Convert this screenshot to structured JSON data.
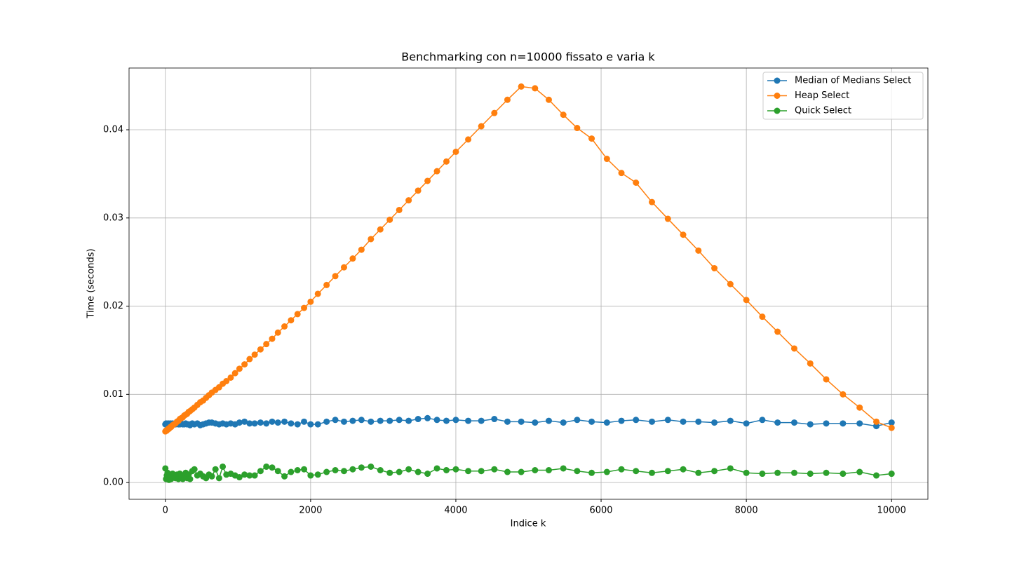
{
  "chart_data": {
    "type": "line",
    "title": "Benchmarking con n=10000 fissato e varia k",
    "x_label": "Indice k",
    "y_label": "Time (seconds)",
    "x": [
      0,
      10,
      20,
      30,
      40,
      50,
      60,
      70,
      80,
      100,
      120,
      140,
      160,
      180,
      200,
      220,
      240,
      260,
      280,
      300,
      320,
      340,
      370,
      400,
      440,
      480,
      520,
      560,
      600,
      640,
      690,
      740,
      790,
      840,
      900,
      960,
      1020,
      1090,
      1160,
      1230,
      1310,
      1390,
      1470,
      1550,
      1640,
      1730,
      1820,
      1910,
      2000,
      2100,
      2220,
      2340,
      2460,
      2580,
      2700,
      2830,
      2960,
      3090,
      3220,
      3350,
      3480,
      3610,
      3740,
      3870,
      4000,
      4170,
      4350,
      4530,
      4710,
      4900,
      5090,
      5280,
      5480,
      5670,
      5870,
      6080,
      6280,
      6480,
      6700,
      6920,
      7130,
      7340,
      7560,
      7780,
      8000,
      8220,
      8430,
      8660,
      8880,
      9100,
      9330,
      9560,
      9790,
      10000
    ],
    "series": [
      {
        "name": "Median of Medians Select",
        "color": "#1f77b4",
        "values": [
          0.0066,
          0.0067,
          0.0066,
          0.0065,
          0.0067,
          0.0066,
          0.0066,
          0.0067,
          0.0066,
          0.0067,
          0.0066,
          0.0066,
          0.0067,
          0.0066,
          0.0066,
          0.0067,
          0.0066,
          0.0066,
          0.0067,
          0.0066,
          0.0066,
          0.0065,
          0.0067,
          0.0066,
          0.0067,
          0.0065,
          0.0066,
          0.0067,
          0.0068,
          0.0068,
          0.0067,
          0.0066,
          0.0067,
          0.0066,
          0.0067,
          0.0066,
          0.0068,
          0.0069,
          0.0067,
          0.0067,
          0.0068,
          0.0067,
          0.0069,
          0.0068,
          0.0069,
          0.0067,
          0.0066,
          0.0069,
          0.0066,
          0.0066,
          0.0069,
          0.0071,
          0.0069,
          0.007,
          0.0071,
          0.0069,
          0.007,
          0.007,
          0.0071,
          0.007,
          0.0072,
          0.0073,
          0.0071,
          0.007,
          0.0071,
          0.007,
          0.007,
          0.0072,
          0.0069,
          0.0069,
          0.0068,
          0.007,
          0.0068,
          0.0071,
          0.0069,
          0.0068,
          0.007,
          0.0071,
          0.0069,
          0.0071,
          0.0069,
          0.0069,
          0.0068,
          0.007,
          0.0067,
          0.0071,
          0.0068,
          0.0068,
          0.0066,
          0.0067,
          0.0067,
          0.0067,
          0.0064,
          0.0068
        ]
      },
      {
        "name": "Heap Select",
        "color": "#ff7f0e",
        "values": [
          0.0058,
          0.0059,
          0.0059,
          0.006,
          0.0061,
          0.0061,
          0.0062,
          0.0063,
          0.0063,
          0.0065,
          0.0066,
          0.0067,
          0.0069,
          0.007,
          0.0072,
          0.0073,
          0.0074,
          0.0076,
          0.0077,
          0.0078,
          0.008,
          0.0081,
          0.0083,
          0.0085,
          0.0088,
          0.0091,
          0.0093,
          0.0096,
          0.0099,
          0.0102,
          0.0105,
          0.0108,
          0.0112,
          0.0115,
          0.0119,
          0.0124,
          0.0129,
          0.0134,
          0.014,
          0.0145,
          0.0151,
          0.0157,
          0.0163,
          0.017,
          0.0177,
          0.0184,
          0.0191,
          0.0198,
          0.0205,
          0.0214,
          0.0224,
          0.0234,
          0.0244,
          0.0254,
          0.0264,
          0.0276,
          0.0287,
          0.0298,
          0.0309,
          0.032,
          0.0331,
          0.0342,
          0.0353,
          0.0364,
          0.0375,
          0.0389,
          0.0404,
          0.0419,
          0.0434,
          0.0449,
          0.0447,
          0.0434,
          0.0417,
          0.0402,
          0.039,
          0.0367,
          0.0351,
          0.034,
          0.0318,
          0.0299,
          0.0281,
          0.0263,
          0.0243,
          0.0225,
          0.0207,
          0.0188,
          0.0171,
          0.0152,
          0.0135,
          0.0117,
          0.01,
          0.0085,
          0.0069,
          0.0062
        ]
      },
      {
        "name": "Quick Select",
        "color": "#2ca02c",
        "values": [
          0.0016,
          0.0004,
          0.0008,
          0.0011,
          0.0005,
          0.0003,
          0.0009,
          0.0006,
          0.0004,
          0.001,
          0.0007,
          0.0005,
          0.0009,
          0.0004,
          0.001,
          0.0006,
          0.0004,
          0.0007,
          0.0011,
          0.0005,
          0.0009,
          0.0004,
          0.0013,
          0.0015,
          0.0008,
          0.001,
          0.0007,
          0.0005,
          0.0009,
          0.0007,
          0.0015,
          0.0005,
          0.0018,
          0.0009,
          0.001,
          0.0008,
          0.0006,
          0.0009,
          0.0008,
          0.0008,
          0.0013,
          0.0018,
          0.0017,
          0.0013,
          0.0007,
          0.0012,
          0.0014,
          0.0015,
          0.0008,
          0.0009,
          0.0012,
          0.0014,
          0.0013,
          0.0015,
          0.0017,
          0.0018,
          0.0014,
          0.0011,
          0.0012,
          0.0015,
          0.0012,
          0.001,
          0.0016,
          0.0014,
          0.0015,
          0.0013,
          0.0013,
          0.0015,
          0.0012,
          0.0012,
          0.0014,
          0.0014,
          0.0016,
          0.0013,
          0.0011,
          0.0012,
          0.0015,
          0.0013,
          0.0011,
          0.0013,
          0.0015,
          0.0011,
          0.0013,
          0.0016,
          0.0011,
          0.001,
          0.0011,
          0.0011,
          0.001,
          0.0011,
          0.001,
          0.0012,
          0.0008,
          0.001
        ]
      }
    ],
    "xlim": [
      -500,
      10500
    ],
    "ylim": [
      -0.0019,
      0.047
    ],
    "xticks": [
      0,
      2000,
      4000,
      6000,
      8000,
      10000
    ],
    "yticks": [
      {
        "value": 0,
        "label": "0.00"
      },
      {
        "value": 0.01,
        "label": "0.01"
      },
      {
        "value": 0.02,
        "label": "0.02"
      },
      {
        "value": 0.03,
        "label": "0.03"
      },
      {
        "value": 0.04,
        "label": "0.04"
      }
    ],
    "grid": true,
    "legend": "upper right"
  }
}
